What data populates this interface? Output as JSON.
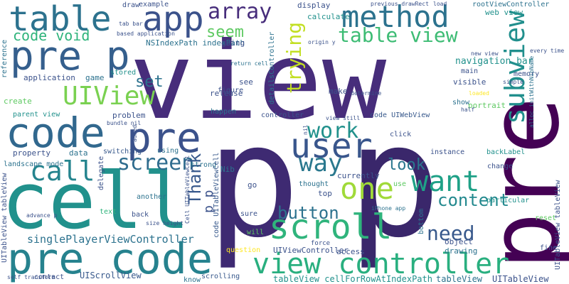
{
  "words": [
    "view",
    "p",
    "pre",
    "cell",
    "code",
    "app",
    "table",
    "scroll",
    "pre p",
    "pre code",
    "view controller",
    "method",
    "user",
    "want",
    "one",
    "table view",
    "subview",
    "way",
    "call",
    "work",
    "screen",
    "button",
    "UIView",
    "array",
    "need",
    "content",
    "trying",
    "seem",
    "look",
    "set",
    "code void",
    "Thank",
    "UIScrollView",
    "singlePlayerViewController",
    "tableView cellForRowAtIndexPath",
    "tableView",
    "UITableView",
    "NSIndexPath indexPath",
    "navigation bar",
    "web view",
    "rootViewController",
    "display",
    "calculate",
    "question",
    "UIViewController",
    "drawing",
    "access",
    "know",
    "scrolling",
    "contact",
    "application",
    "game",
    "stored",
    "memory",
    "main",
    "object",
    "portrait",
    "show",
    "make",
    "create",
    "parent view",
    "problem",
    "happen",
    "controller",
    "click",
    "iPhone app",
    "instance",
    "change",
    "backLabel",
    "property",
    "data",
    "switching",
    "using",
    "strong",
    "delegate",
    "landscape mode",
    "another",
    "back",
    "text",
    "Cell UITableViewCell",
    "Nib",
    "go",
    "top",
    "thought",
    "currently",
    "use",
    "bottom",
    "particular",
    "reset",
    "fine",
    "sure",
    "will",
    "force",
    "release",
    "figure",
    "see",
    "return cell",
    "going",
    "based application",
    "example",
    "tab bar",
    "draw",
    "previous drawRect",
    "load",
    "self transform",
    "size height",
    "detailsController",
    "code UITableViewCell",
    "code UIWebView",
    "visible",
    "simple",
    "half",
    "loaded",
    "new view",
    "every time",
    "determine",
    "view still",
    "reference",
    "origin y",
    "added",
    "bundle nil",
    "alloc initWithNibName",
    "UITableView tableView",
    "advance p",
    "nil",
    "p p"
  ],
  "colors": {
    "dark": "#440154",
    "indigo": "#472d7b",
    "blue": "#3b528b",
    "steel": "#2c728e",
    "teal": "#21918c",
    "green": "#28ae80",
    "mint": "#5ec962",
    "lime": "#addc30",
    "yellow": "#fde725"
  }
}
